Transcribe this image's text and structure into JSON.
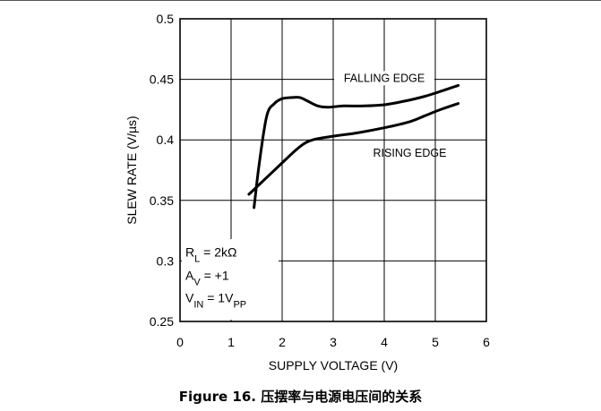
{
  "caption": "Figure 16. 压摆率与电源电压间的关系",
  "chart_data": {
    "type": "line",
    "xlabel": "SUPPLY VOLTAGE (V)",
    "ylabel": "SLEW RATE (V/µs)",
    "xlim": [
      0,
      6
    ],
    "ylim": [
      0.25,
      0.5
    ],
    "xticks": [
      "0",
      "1",
      "2",
      "3",
      "4",
      "5",
      "6"
    ],
    "yticks": [
      "0.25",
      "0.3",
      "0.35",
      "0.4",
      "0.45",
      "0.5"
    ],
    "grid": true,
    "series": [
      {
        "name": "FALLING EDGE",
        "x": [
          1.45,
          1.55,
          1.7,
          1.85,
          2.0,
          2.2,
          2.35,
          2.5,
          2.7,
          2.9,
          3.2,
          3.6,
          4.0,
          4.4,
          4.8,
          5.1,
          5.45
        ],
        "y": [
          0.344,
          0.38,
          0.42,
          0.43,
          0.434,
          0.435,
          0.435,
          0.432,
          0.428,
          0.427,
          0.428,
          0.428,
          0.429,
          0.432,
          0.436,
          0.44,
          0.445
        ]
      },
      {
        "name": "RISING EDGE",
        "x": [
          1.35,
          1.6,
          1.8,
          2.0,
          2.2,
          2.4,
          2.6,
          3.0,
          3.5,
          4.0,
          4.5,
          4.8,
          5.1,
          5.45
        ],
        "y": [
          0.355,
          0.365,
          0.373,
          0.381,
          0.389,
          0.396,
          0.4,
          0.403,
          0.406,
          0.41,
          0.415,
          0.42,
          0.425,
          0.43
        ]
      }
    ],
    "annotations": [
      "FALLING EDGE",
      "RISING EDGE"
    ],
    "conditions": [
      "R_L = 2kΩ",
      "A_V = +1",
      "V_IN = 1V_PP"
    ]
  }
}
